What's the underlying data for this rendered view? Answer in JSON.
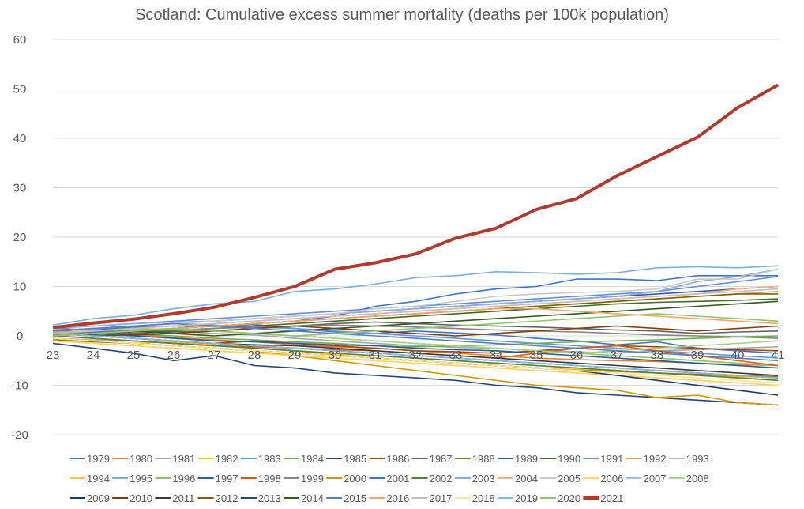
{
  "chart_data": {
    "type": "line",
    "title": "Scotland: Cumulative excess summer mortality (deaths per 100k population)",
    "xlabel": "",
    "ylabel": "",
    "x": [
      "23",
      "24",
      "25",
      "26",
      "27",
      "28",
      "29",
      "30",
      "31",
      "32",
      "33",
      "34",
      "35",
      "36",
      "37",
      "38",
      "39",
      "40",
      "41"
    ],
    "ylim": [
      -20,
      60
    ],
    "yticks": [
      "-20",
      "-10",
      "0",
      "10",
      "20",
      "30",
      "40",
      "50",
      "60"
    ],
    "ytick_values": [
      -20,
      -10,
      0,
      10,
      20,
      30,
      40,
      50,
      60
    ],
    "grid": true,
    "legend_position": "bottom",
    "highlight_color": "#b03a2e",
    "highlight_series": "2021",
    "series": [
      {
        "name": "1979",
        "color": "#4472c4",
        "values": [
          1.5,
          1.2,
          1.8,
          2.0,
          1.9,
          2.3,
          1.5,
          0.8,
          0.5,
          1.0,
          0.6,
          0.2,
          -0.5,
          -1.0,
          -1.8,
          -1.2,
          -2.5,
          -3.0,
          -3.5
        ]
      },
      {
        "name": "1980",
        "color": "#ed7d31",
        "values": [
          0.8,
          0.5,
          0.2,
          -0.3,
          -0.8,
          -1.2,
          -1.8,
          -2.2,
          -2.5,
          -3.0,
          -3.5,
          -4.0,
          -4.5,
          -4.8,
          -5.0,
          -5.2,
          -5.5,
          -5.8,
          -6.0
        ]
      },
      {
        "name": "1981",
        "color": "#a5a5a5",
        "values": [
          0.5,
          0.8,
          1.2,
          1.0,
          0.5,
          0.2,
          -0.5,
          -1.0,
          -1.5,
          -2.0,
          -2.3,
          -2.5,
          -3.0,
          -3.2,
          -3.5,
          -3.0,
          -2.8,
          -2.5,
          -2.2
        ]
      },
      {
        "name": "1982",
        "color": "#ffc000",
        "values": [
          -0.5,
          -1.0,
          -1.5,
          -1.2,
          -1.8,
          -2.5,
          -3.0,
          -3.8,
          -4.5,
          -5.0,
          -5.5,
          -6.0,
          -6.5,
          -6.8,
          -7.0,
          -7.5,
          -8.0,
          -8.2,
          -8.5
        ]
      },
      {
        "name": "1983",
        "color": "#5b9bd5",
        "values": [
          1.0,
          1.5,
          2.0,
          2.5,
          2.2,
          1.8,
          1.5,
          1.0,
          0.5,
          0.0,
          -0.5,
          -1.0,
          -1.5,
          -2.0,
          -2.5,
          -3.0,
          -3.5,
          -4.0,
          -4.5
        ]
      },
      {
        "name": "1984",
        "color": "#70ad47",
        "values": [
          0.2,
          0.5,
          0.3,
          0.0,
          -0.5,
          -0.8,
          -1.2,
          -1.5,
          -2.0,
          -2.2,
          -2.0,
          -1.8,
          -1.5,
          -1.2,
          -1.0,
          -0.8,
          -0.5,
          -0.2,
          0.0
        ]
      },
      {
        "name": "1985",
        "color": "#264478",
        "values": [
          -1.5,
          -2.5,
          -3.5,
          -5.0,
          -4.0,
          -6.0,
          -6.5,
          -7.5,
          -8.0,
          -8.5,
          -9.0,
          -10.0,
          -10.5,
          -11.5,
          -12.0,
          -12.5,
          -13.0,
          -13.5,
          -14.0
        ]
      },
      {
        "name": "1986",
        "color": "#9e480e",
        "values": [
          0.5,
          0.0,
          -0.5,
          -1.0,
          -1.5,
          -1.0,
          -1.5,
          -2.0,
          -2.5,
          -3.0,
          -3.2,
          -3.5,
          -3.0,
          -2.5,
          -2.0,
          -2.2,
          -2.5,
          -2.8,
          -3.0
        ]
      },
      {
        "name": "1987",
        "color": "#636363",
        "values": [
          1.0,
          0.8,
          0.5,
          0.8,
          1.0,
          1.5,
          2.0,
          2.5,
          2.8,
          2.5,
          2.2,
          2.0,
          1.8,
          1.5,
          1.2,
          1.0,
          0.5,
          0.8,
          1.0
        ]
      },
      {
        "name": "1988",
        "color": "#997300",
        "values": [
          -0.8,
          -1.2,
          -1.5,
          -2.0,
          -2.5,
          -3.0,
          -3.5,
          -4.0,
          -4.5,
          -5.0,
          -5.5,
          -6.0,
          -6.5,
          -7.0,
          -7.2,
          -7.5,
          -7.8,
          -8.0,
          -8.2
        ]
      },
      {
        "name": "1989",
        "color": "#255e91",
        "values": [
          0.5,
          0.2,
          0.0,
          -0.5,
          -1.0,
          -1.2,
          -1.5,
          -1.8,
          -2.0,
          -2.5,
          -2.8,
          -3.0,
          -3.5,
          -4.0,
          -4.5,
          -5.0,
          -5.5,
          -6.0,
          -6.5
        ]
      },
      {
        "name": "1990",
        "color": "#43682b",
        "values": [
          0.0,
          0.5,
          0.8,
          1.0,
          1.5,
          2.0,
          2.5,
          3.0,
          3.5,
          4.0,
          4.5,
          5.0,
          5.5,
          6.0,
          6.5,
          6.8,
          7.0,
          7.2,
          7.5
        ]
      },
      {
        "name": "1991",
        "color": "#698ed0",
        "values": [
          1.5,
          2.0,
          2.5,
          3.0,
          3.5,
          4.0,
          4.5,
          5.0,
          5.5,
          6.0,
          6.5,
          7.0,
          7.5,
          8.0,
          8.5,
          9.0,
          10.0,
          11.0,
          12.0
        ]
      },
      {
        "name": "1992",
        "color": "#f1975a",
        "values": [
          0.8,
          1.0,
          1.2,
          1.5,
          2.0,
          2.5,
          3.0,
          3.5,
          4.0,
          4.5,
          5.0,
          5.5,
          6.0,
          6.5,
          7.0,
          7.5,
          8.0,
          8.5,
          9.0
        ]
      },
      {
        "name": "1993",
        "color": "#b7b7b7",
        "values": [
          -0.5,
          -0.8,
          -1.0,
          -1.5,
          -2.0,
          -2.5,
          -3.0,
          -3.5,
          -4.0,
          -4.5,
          -5.0,
          -5.5,
          -6.0,
          -6.5,
          -7.0,
          -7.5,
          -8.0,
          -8.5,
          -9.0
        ]
      },
      {
        "name": "1994",
        "color": "#ffcd33",
        "values": [
          -1.0,
          -1.5,
          -2.0,
          -2.5,
          -3.0,
          -3.5,
          -4.0,
          -4.5,
          -5.0,
          -5.5,
          -6.0,
          -6.5,
          -7.0,
          -7.5,
          -8.0,
          -8.5,
          -9.0,
          -9.5,
          -10.0
        ]
      },
      {
        "name": "1995",
        "color": "#7cafdd",
        "values": [
          2.2,
          3.5,
          4.2,
          5.5,
          6.5,
          7.0,
          9.0,
          9.5,
          10.5,
          11.8,
          12.2,
          13.0,
          12.8,
          12.5,
          12.8,
          13.8,
          14.0,
          13.8,
          14.2
        ]
      },
      {
        "name": "1996",
        "color": "#8cc168",
        "values": [
          0.5,
          1.0,
          1.5,
          1.2,
          1.0,
          0.5,
          0.0,
          -0.5,
          -1.0,
          -1.5,
          -2.0,
          -2.5,
          -3.0,
          -3.5,
          -4.0,
          -4.5,
          -5.0,
          -5.5,
          -6.0
        ]
      },
      {
        "name": "1997",
        "color": "#335aa1",
        "values": [
          1.0,
          1.5,
          2.0,
          2.5,
          3.0,
          3.5,
          4.0,
          4.5,
          5.0,
          5.5,
          6.0,
          6.5,
          7.0,
          7.5,
          8.0,
          8.5,
          9.0,
          9.5,
          10.0
        ]
      },
      {
        "name": "1998",
        "color": "#d26012",
        "values": [
          0.0,
          -0.5,
          -1.0,
          -1.5,
          -2.0,
          -2.2,
          -2.5,
          -2.8,
          -3.0,
          -3.5,
          -4.0,
          -4.5,
          -3.5,
          -2.5,
          -2.0,
          -3.0,
          -4.0,
          -5.0,
          -6.0
        ]
      },
      {
        "name": "1999",
        "color": "#848484",
        "values": [
          0.5,
          0.8,
          1.0,
          1.2,
          1.5,
          1.8,
          2.0,
          2.2,
          2.0,
          1.8,
          1.5,
          1.2,
          1.0,
          0.8,
          0.5,
          0.2,
          0.0,
          -0.2,
          -0.5
        ]
      },
      {
        "name": "2000",
        "color": "#cc9a00",
        "values": [
          -0.5,
          -1.0,
          -1.5,
          -2.0,
          -2.5,
          -3.0,
          -4.0,
          -5.0,
          -6.0,
          -7.0,
          -8.0,
          -9.0,
          -10.0,
          -10.5,
          -11.0,
          -12.5,
          -12.0,
          -13.5,
          -14.0
        ]
      },
      {
        "name": "2001",
        "color": "#4472c4",
        "values": [
          0.5,
          0.8,
          1.0,
          1.5,
          2.0,
          2.5,
          3.0,
          4.0,
          6.0,
          7.0,
          8.5,
          9.5,
          10.0,
          11.5,
          11.5,
          11.2,
          12.2,
          12.2,
          12.2
        ]
      },
      {
        "name": "2002",
        "color": "#548235",
        "values": [
          0.0,
          -0.5,
          -1.0,
          -1.5,
          -2.0,
          -2.5,
          -3.0,
          -3.5,
          -4.0,
          -4.5,
          -5.0,
          -5.5,
          -6.0,
          -6.5,
          -7.0,
          -7.5,
          -8.0,
          -8.5,
          -9.0
        ]
      },
      {
        "name": "2003",
        "color": "#8faadc",
        "values": [
          1.5,
          2.0,
          2.5,
          2.8,
          3.0,
          3.5,
          4.0,
          4.5,
          5.0,
          5.5,
          6.0,
          6.5,
          7.0,
          7.5,
          8.0,
          9.0,
          11.0,
          12.0,
          13.5
        ]
      },
      {
        "name": "2004",
        "color": "#f4b183",
        "values": [
          0.5,
          1.0,
          1.5,
          2.0,
          2.5,
          3.0,
          3.5,
          4.0,
          4.5,
          5.0,
          5.5,
          6.0,
          6.5,
          7.0,
          7.5,
          8.0,
          8.5,
          9.5,
          10.0
        ]
      },
      {
        "name": "2005",
        "color": "#c9c9c9",
        "values": [
          1.0,
          1.5,
          2.0,
          2.5,
          3.0,
          3.5,
          4.0,
          4.5,
          5.5,
          6.0,
          7.0,
          8.0,
          8.5,
          8.8,
          9.0,
          9.5,
          11.5,
          11.5,
          13.5
        ]
      },
      {
        "name": "2006",
        "color": "#ffd966",
        "values": [
          -1.0,
          -1.5,
          -2.0,
          -2.5,
          -3.0,
          -3.5,
          -4.0,
          -4.5,
          -5.0,
          -5.5,
          -6.0,
          -6.5,
          -7.0,
          -7.5,
          -8.0,
          -8.5,
          -9.0,
          -9.5,
          -10.0
        ]
      },
      {
        "name": "2007",
        "color": "#9dc3e6",
        "values": [
          0.5,
          0.0,
          -0.5,
          -1.0,
          -1.5,
          -2.0,
          -2.5,
          -3.0,
          -3.5,
          -4.0,
          -4.5,
          -5.0,
          -5.5,
          -6.0,
          -6.5,
          -7.0,
          -7.5,
          -8.0,
          -8.5
        ]
      },
      {
        "name": "2008",
        "color": "#a9d18e",
        "values": [
          0.0,
          0.5,
          1.0,
          1.5,
          1.0,
          0.5,
          0.0,
          -0.5,
          -1.0,
          -1.5,
          -2.0,
          -2.5,
          -3.0,
          -3.5,
          -3.0,
          -2.5,
          -2.0,
          -1.5,
          -1.0
        ]
      },
      {
        "name": "2009",
        "color": "#1f3864",
        "values": [
          -0.5,
          -1.0,
          -1.5,
          -2.0,
          -2.5,
          -3.0,
          -3.5,
          -4.0,
          -4.5,
          -5.0,
          -5.5,
          -6.0,
          -6.5,
          -7.0,
          -8.0,
          -9.0,
          -10.0,
          -11.0,
          -12.0
        ]
      },
      {
        "name": "2010",
        "color": "#843c0c",
        "values": [
          0.0,
          0.5,
          0.2,
          0.5,
          1.0,
          1.5,
          2.0,
          1.5,
          1.0,
          0.5,
          0.0,
          0.5,
          1.0,
          1.5,
          2.0,
          1.5,
          1.0,
          1.5,
          2.0
        ]
      },
      {
        "name": "2011",
        "color": "#3a3a3a",
        "values": [
          0.5,
          0.0,
          -0.5,
          -1.0,
          -1.5,
          -1.8,
          -2.0,
          -2.5,
          -3.0,
          -3.5,
          -4.0,
          -4.5,
          -5.0,
          -5.5,
          -6.0,
          -6.5,
          -7.0,
          -7.5,
          -8.0
        ]
      },
      {
        "name": "2012",
        "color": "#7f6000",
        "values": [
          0.0,
          0.5,
          1.0,
          1.5,
          2.0,
          2.5,
          3.0,
          3.5,
          4.0,
          4.5,
          5.0,
          5.5,
          6.0,
          6.5,
          7.0,
          7.5,
          8.0,
          8.5,
          8.5
        ]
      },
      {
        "name": "2013",
        "color": "#1f4e79",
        "values": [
          0.5,
          0.0,
          -0.5,
          -1.0,
          -1.5,
          -2.0,
          -2.5,
          -3.0,
          -3.5,
          -4.0,
          -4.5,
          -5.0,
          -5.5,
          -6.0,
          -6.5,
          -7.0,
          -7.5,
          -8.0,
          -8.5
        ]
      },
      {
        "name": "2014",
        "color": "#375623",
        "values": [
          0.0,
          0.5,
          1.0,
          0.5,
          0.0,
          0.5,
          1.0,
          1.5,
          2.0,
          2.5,
          3.0,
          3.5,
          4.0,
          4.5,
          5.0,
          5.5,
          6.0,
          6.5,
          7.0
        ]
      },
      {
        "name": "2015",
        "color": "#5a7dbf",
        "values": [
          1.0,
          1.5,
          2.0,
          2.5,
          2.0,
          1.5,
          1.0,
          0.5,
          0.0,
          -0.5,
          -1.0,
          -1.5,
          -2.0,
          -2.5,
          -3.0,
          -3.5,
          -4.0,
          -4.5,
          -5.0
        ]
      },
      {
        "name": "2016",
        "color": "#f5a46e",
        "values": [
          0.0,
          0.5,
          1.0,
          1.5,
          2.0,
          2.5,
          3.0,
          3.5,
          4.0,
          4.5,
          5.0,
          5.5,
          5.5,
          5.0,
          4.5,
          4.0,
          3.5,
          3.0,
          2.5
        ]
      },
      {
        "name": "2017",
        "color": "#bfbfbf",
        "values": [
          0.5,
          1.0,
          1.5,
          2.0,
          2.5,
          3.0,
          3.5,
          4.0,
          4.5,
          5.0,
          5.5,
          6.0,
          6.5,
          7.0,
          7.5,
          8.0,
          8.5,
          9.0,
          9.5
        ]
      },
      {
        "name": "2018",
        "color": "#ffe699",
        "values": [
          -0.5,
          -1.0,
          -1.5,
          -2.0,
          -2.5,
          -3.0,
          -3.5,
          -4.0,
          -4.5,
          -5.0,
          -5.5,
          -6.0,
          -6.5,
          -7.0,
          -7.5,
          -8.0,
          -8.5,
          -9.0,
          -9.5
        ]
      },
      {
        "name": "2019",
        "color": "#8fb4de",
        "values": [
          0.5,
          0.0,
          -0.5,
          -1.0,
          -1.5,
          -2.0,
          -2.5,
          -3.0,
          -3.5,
          -4.0,
          -4.5,
          -5.0,
          -5.5,
          -6.0,
          -6.5,
          -7.0,
          -7.5,
          -8.0,
          -8.5
        ]
      },
      {
        "name": "2020",
        "color": "#94c46e",
        "values": [
          0.0,
          0.5,
          1.0,
          1.5,
          1.0,
          0.5,
          0.0,
          0.5,
          1.0,
          1.5,
          2.0,
          2.5,
          3.0,
          3.5,
          4.0,
          4.5,
          4.0,
          3.5,
          3.0
        ]
      },
      {
        "name": "2021",
        "color": "#b03a2e",
        "values": [
          1.7,
          2.6,
          3.4,
          4.5,
          5.8,
          7.8,
          10.0,
          13.5,
          14.8,
          16.6,
          19.8,
          21.8,
          25.6,
          27.8,
          32.4,
          36.3,
          40.2,
          46.2,
          50.8
        ]
      }
    ]
  }
}
